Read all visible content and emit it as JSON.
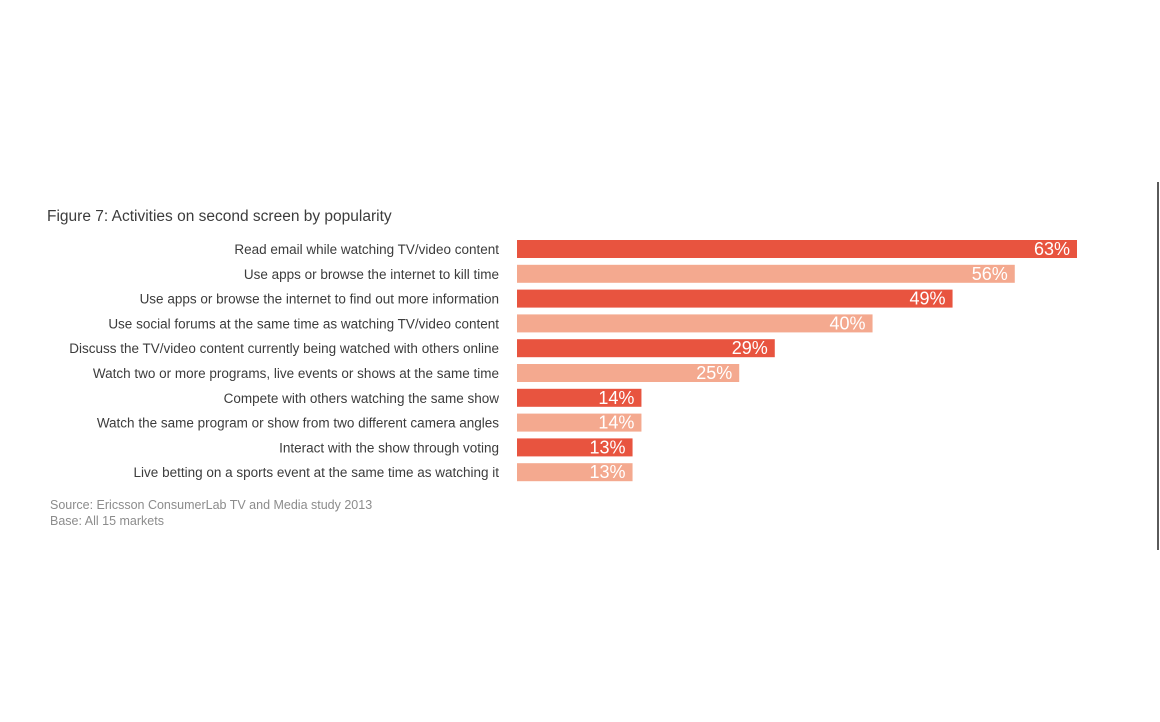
{
  "chart_data": {
    "type": "bar",
    "orientation": "horizontal",
    "title": "Figure 7: Activities on second screen by popularity",
    "categories": [
      "Read email while watching TV/video content",
      "Use apps or browse the internet to kill time",
      "Use apps or browse the internet to find out more information",
      "Use social forums at the same time as watching TV/video content",
      "Discuss the TV/video content currently being watched with others online",
      "Watch two or more programs, live events or shows at the same time",
      "Compete with others watching the same show",
      "Watch the same program or show from two different camera angles",
      "Interact with the show through voting",
      "Live betting on a sports event at the same time as watching it"
    ],
    "values": [
      63,
      56,
      49,
      40,
      29,
      25,
      14,
      14,
      13,
      13
    ],
    "value_labels": [
      "63%",
      "56%",
      "49%",
      "40%",
      "29%",
      "25%",
      "14%",
      "14%",
      "13%",
      "13%"
    ],
    "unit": "%",
    "xlim": [
      0,
      63
    ],
    "grid": false,
    "legend": "none",
    "colors": [
      "#e8543f",
      "#f4a98f"
    ]
  },
  "footnotes": {
    "source": "Source: Ericsson ConsumerLab TV and Media study 2013",
    "base": "Base: All 15 markets"
  }
}
